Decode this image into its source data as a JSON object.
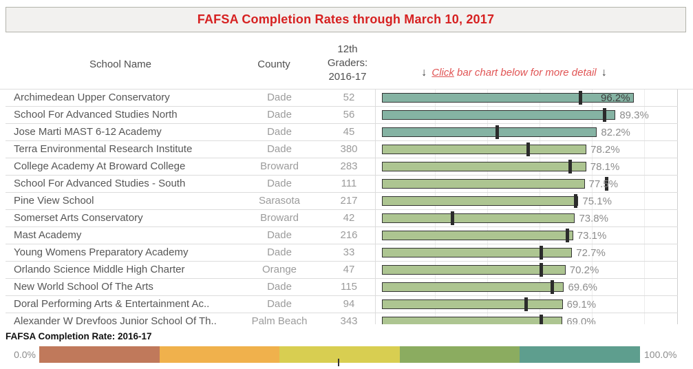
{
  "banner": {
    "title": "FAFSA Completion Rates through March 10, 2017"
  },
  "header": {
    "school": "School Name",
    "county": "County",
    "graders_lines": [
      "12th",
      "Graders:",
      "2016-17"
    ]
  },
  "note": {
    "arrow_down": "↓",
    "click": "Click",
    "rest": "bar chart below for more detail"
  },
  "chart_data": {
    "type": "bar",
    "orientation": "horizontal",
    "title": "FAFSA Completion Rates through March 10, 2017",
    "xlabel": "FAFSA Completion Rate: 2016-17",
    "xlim": [
      0,
      100
    ],
    "unit": "percent",
    "grid": true,
    "gridlines_pct": [
      20,
      40,
      60,
      80,
      100
    ],
    "rows": [
      {
        "school": "Archimedean Upper Conservatory",
        "county": "Dade",
        "graders": "52",
        "pct": 96.2,
        "label": "96.2%",
        "marker_pct": 76,
        "inside_label": true
      },
      {
        "school": "School For Advanced Studies North",
        "county": "Dade",
        "graders": "56",
        "pct": 89.3,
        "label": "89.3%",
        "marker_pct": 85,
        "inside_label": false
      },
      {
        "school": "Jose Marti MAST 6-12 Academy",
        "county": "Dade",
        "graders": "45",
        "pct": 82.2,
        "label": "82.2%",
        "marker_pct": 44,
        "inside_label": false
      },
      {
        "school": "Terra Environmental Research Institute",
        "county": "Dade",
        "graders": "380",
        "pct": 78.2,
        "label": "78.2%",
        "marker_pct": 56,
        "inside_label": false
      },
      {
        "school": "College Academy At Broward College",
        "county": "Broward",
        "graders": "283",
        "pct": 78.1,
        "label": "78.1%",
        "marker_pct": 72,
        "inside_label": false
      },
      {
        "school": "School For Advanced Studies - South",
        "county": "Dade",
        "graders": "111",
        "pct": 77.5,
        "label": "77.5%",
        "marker_pct": 86,
        "inside_label": false
      },
      {
        "school": "Pine View School",
        "county": "Sarasota",
        "graders": "217",
        "pct": 75.1,
        "label": "75.1%",
        "marker_pct": 74,
        "inside_label": false
      },
      {
        "school": "Somerset Arts Conservatory",
        "county": "Broward",
        "graders": "42",
        "pct": 73.8,
        "label": "73.8%",
        "marker_pct": 27,
        "inside_label": false
      },
      {
        "school": "Mast Academy",
        "county": "Dade",
        "graders": "216",
        "pct": 73.1,
        "label": "73.1%",
        "marker_pct": 71,
        "inside_label": false
      },
      {
        "school": "Young Womens Preparatory Academy",
        "county": "Dade",
        "graders": "33",
        "pct": 72.7,
        "label": "72.7%",
        "marker_pct": 61,
        "inside_label": false
      },
      {
        "school": "Orlando Science Middle High Charter",
        "county": "Orange",
        "graders": "47",
        "pct": 70.2,
        "label": "70.2%",
        "marker_pct": 61,
        "inside_label": false
      },
      {
        "school": "New World School Of The Arts",
        "county": "Dade",
        "graders": "115",
        "pct": 69.6,
        "label": "69.6%",
        "marker_pct": 65,
        "inside_label": false
      },
      {
        "school": "Doral Performing Arts & Entertainment Ac..",
        "county": "Dade",
        "graders": "94",
        "pct": 69.1,
        "label": "69.1%",
        "marker_pct": 55,
        "inside_label": false
      },
      {
        "school": "Alexander W Dreyfoos Junior School Of Th..",
        "county": "Palm Beach",
        "graders": "343",
        "pct": 69.0,
        "label": "69.0%",
        "marker_pct": 61,
        "inside_label": false
      }
    ]
  },
  "colors": {
    "bar_high": "#85b3a3",
    "bar_mid": "#adc591",
    "bar_border": "#333333",
    "marker": "#2b2b2b",
    "high_threshold_pct": 80
  },
  "legend": {
    "title": "FAFSA Completion Rate: 2016-17",
    "min_label": "0.0%",
    "max_label": "100.0%",
    "band_colors": [
      "#c0795b",
      "#f0b14c",
      "#d8ce51",
      "#8bac60",
      "#5e9e8e"
    ],
    "midpoint_tick_pct": 49.7
  }
}
